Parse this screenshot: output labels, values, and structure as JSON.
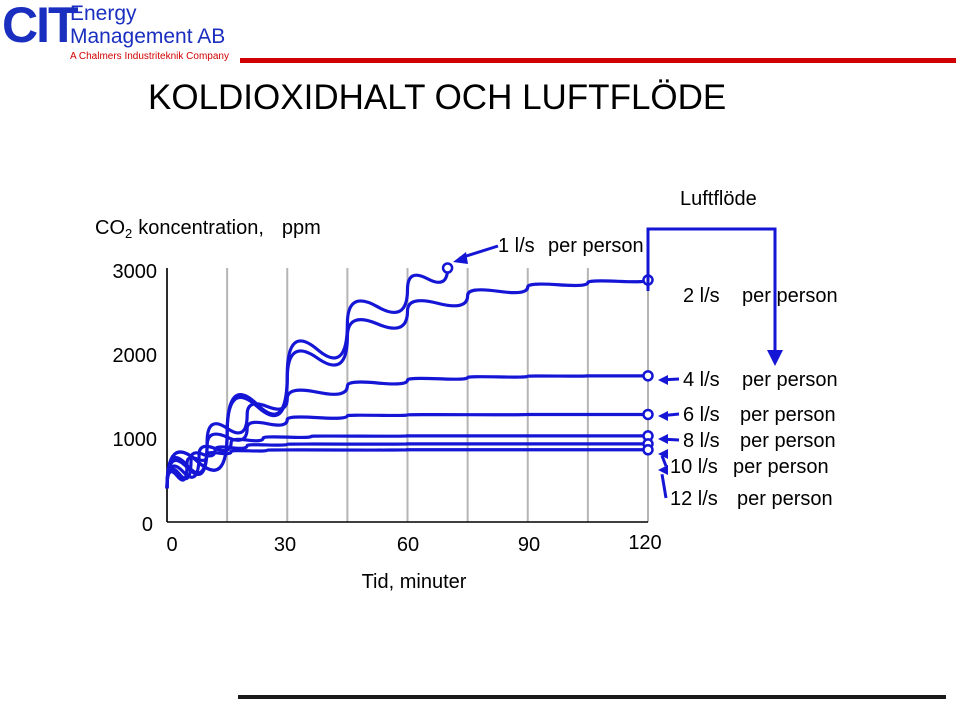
{
  "header": {
    "logo_mark": "CIT",
    "company_line1": "Energy",
    "company_line2": "Management AB",
    "tagline": "A Chalmers Industriteknik Company",
    "accent_color": "#1a2fbf",
    "rule_color": "#d10000"
  },
  "slide_title": "KOLDIOXIDHALT OCH LUFTFLÖDE",
  "chart_data": {
    "type": "line",
    "ylabel_main": "CO",
    "ylabel_sub": "2",
    "ylabel_rest": "koncentration,",
    "ylabel_unit": "ppm",
    "xlabel": "Tid, minuter",
    "x_ticks": [
      "0",
      "30",
      "60",
      "90",
      "120"
    ],
    "y_ticks": [
      "0",
      "1000",
      "2000",
      "3000"
    ],
    "xlim": [
      0,
      120
    ],
    "ylim": [
      0,
      3000
    ],
    "y_axis_scale": "nonlinear (gridless, tick spacing uneven as drawn)",
    "grid": "vertical lines at 15-minute intervals",
    "line_color": "#1515d6",
    "flow_header": "Luftflöde",
    "series": [
      {
        "name": "1 l/s",
        "suffix": "per person",
        "x": [
          0,
          15,
          30,
          45,
          60,
          70
        ],
        "y": [
          400,
          1050,
          1750,
          2350,
          2750,
          3000
        ]
      },
      {
        "name": "2 l/s",
        "suffix": "per person",
        "x": [
          0,
          15,
          30,
          45,
          60,
          75,
          90,
          105,
          120
        ],
        "y": [
          400,
          1050,
          1700,
          2200,
          2500,
          2680,
          2780,
          2830,
          2860
        ]
      },
      {
        "name": "4 l/s",
        "suffix": "per person",
        "x": [
          0,
          10,
          20,
          30,
          45,
          60,
          75,
          90,
          105,
          120
        ],
        "y": [
          400,
          950,
          1280,
          1470,
          1620,
          1690,
          1720,
          1735,
          1740,
          1740
        ]
      },
      {
        "name": "6 l/s",
        "suffix": "per person",
        "x": [
          0,
          10,
          20,
          30,
          45,
          60,
          90,
          120
        ],
        "y": [
          400,
          900,
          1120,
          1220,
          1265,
          1275,
          1280,
          1280
        ]
      },
      {
        "name": "8 l/s",
        "suffix": "per person",
        "x": [
          0,
          8,
          16,
          24,
          36,
          60,
          90,
          120
        ],
        "y": [
          400,
          800,
          950,
          1000,
          1020,
          1025,
          1025,
          1025
        ]
      },
      {
        "name": "10 l/s",
        "suffix": "per person",
        "x": [
          0,
          6,
          12,
          20,
          30,
          60,
          90,
          120
        ],
        "y": [
          400,
          750,
          860,
          910,
          925,
          930,
          930,
          930
        ]
      },
      {
        "name": "12 l/s",
        "suffix": "per person",
        "x": [
          0,
          5,
          10,
          16,
          25,
          60,
          90,
          120
        ],
        "y": [
          400,
          700,
          800,
          840,
          855,
          860,
          860,
          860
        ]
      }
    ]
  }
}
